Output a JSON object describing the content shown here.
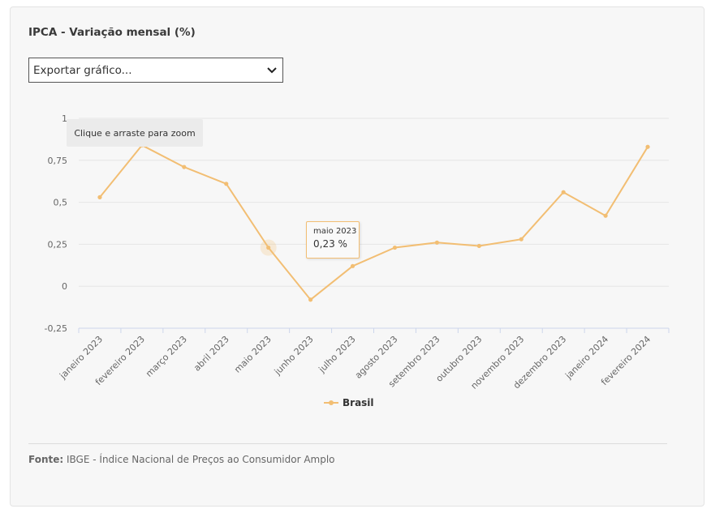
{
  "title": "IPCA - Variação mensal (%)",
  "export_select": {
    "selected": "Exportar gráfico..."
  },
  "zoom_hint": "Clique e arraste para zoom",
  "tooltip": {
    "date": "maio 2023",
    "value": "0,23 %"
  },
  "source": {
    "label": "Fonte:",
    "text": "IBGE - Índice Nacional de Preços ao Consumidor Amplo"
  },
  "colors": {
    "series": "#f2be73",
    "grid": "#e6e6e6",
    "axis": "#ccd6eb"
  },
  "chart_data": {
    "type": "line",
    "title": "IPCA - Variação mensal (%)",
    "categories": [
      "janeiro 2023",
      "fevereiro 2023",
      "março 2023",
      "abril 2023",
      "maio 2023",
      "junho 2023",
      "julho 2023",
      "agosto 2023",
      "setembro 2023",
      "outubro 2023",
      "novembro 2023",
      "dezembro 2023",
      "janeiro 2024",
      "fevereiro 2024"
    ],
    "series": [
      {
        "name": "Brasil",
        "values": [
          0.53,
          0.84,
          0.71,
          0.61,
          0.23,
          -0.08,
          0.12,
          0.23,
          0.26,
          0.24,
          0.28,
          0.56,
          0.42,
          0.83
        ]
      }
    ],
    "y_ticks": [
      "1",
      "0,75",
      "0,5",
      "0,25",
      "0",
      "-0,25"
    ],
    "y_tick_values": [
      1,
      0.75,
      0.5,
      0.25,
      0,
      -0.25
    ],
    "ylim": [
      -0.25,
      1
    ],
    "highlighted_index": 4,
    "grid": true,
    "legend": "bottom-center"
  }
}
